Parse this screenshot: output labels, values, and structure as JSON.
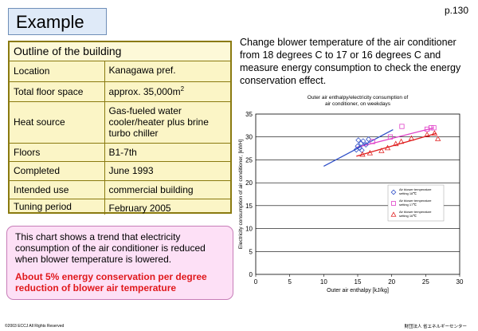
{
  "header": {
    "title": "Example",
    "page_number": "p.130"
  },
  "outline": {
    "heading": "Outline of the building",
    "rows": [
      {
        "key": "Location",
        "value": "Kanagawa pref."
      },
      {
        "key": "Total floor space",
        "value": "approx. 35,000m",
        "sup": "2"
      },
      {
        "key": "Heat source",
        "value": "Gas-fueled water cooler/heater plus brine turbo chiller"
      },
      {
        "key": "Floors",
        "value": "B1-7th"
      },
      {
        "key": "Completed",
        "value": "June 1993"
      },
      {
        "key": "Intended use",
        "value": "commercial building"
      },
      {
        "key": "Tuning period",
        "value": "February 2005"
      }
    ]
  },
  "description": "Change blower temperature of the air conditioner from 18 degrees C to 17 or 16 degrees C and measure energy consumption to check the energy conservation effect.",
  "trend_box": {
    "text": "This chart shows a trend that electricity consumption of the air conditioner is reduced when blower temperature is lowered.",
    "highlight": "About 5% energy conservation per degree reduction of blower air temperature",
    "highlight_color": "#e0181c"
  },
  "footer": {
    "left": "©2003 ECCJ All Rights Reserved",
    "right": "財団法人 省エネルギーセンター"
  },
  "chart_data": {
    "type": "scatter",
    "title_lines": [
      "Outer air enthalpy/electricity consumption of",
      "air conditioner, on weekdays"
    ],
    "xlabel": "Outer air enthalpy [kJ/kg]",
    "ylabel": "Electricity consumption of air conditioner, [kWH]",
    "xlim": [
      0,
      30
    ],
    "ylim": [
      0,
      35
    ],
    "xticks": [
      0,
      5,
      10,
      15,
      20,
      25,
      30
    ],
    "yticks": [
      0,
      5,
      10,
      15,
      20,
      25,
      30,
      35
    ],
    "grid": "horizontal",
    "legend_position": "right",
    "series": [
      {
        "name": "Air blower temperature setting 18℃",
        "marker": "diamond",
        "color": "#3050c8",
        "points": [
          [
            14.8,
            27.2
          ],
          [
            15.0,
            28.0
          ],
          [
            15.1,
            29.3
          ],
          [
            15.3,
            27.6
          ],
          [
            15.5,
            28.6
          ],
          [
            15.6,
            27.1
          ],
          [
            15.8,
            29.1
          ],
          [
            16.2,
            28.3
          ],
          [
            16.6,
            29.5
          ]
        ],
        "trend": [
          [
            10,
            23.6
          ],
          [
            20.2,
            31.6
          ]
        ]
      },
      {
        "name": "Air blower temperature setting 17℃",
        "marker": "square",
        "color": "#e040c8",
        "points": [
          [
            17.2,
            29.0
          ],
          [
            19.8,
            30.0
          ],
          [
            21.5,
            32.3
          ],
          [
            25.2,
            31.7
          ],
          [
            25.8,
            32.0
          ],
          [
            26.2,
            32.0
          ]
        ],
        "trend": [
          [
            14.8,
            27.7
          ],
          [
            26.2,
            32.0
          ]
        ]
      },
      {
        "name": "Air blower temperature setting 16℃",
        "marker": "triangle",
        "color": "#e02020",
        "points": [
          [
            15.7,
            26.2
          ],
          [
            16.8,
            26.5
          ],
          [
            18.5,
            27.0
          ],
          [
            19.4,
            27.6
          ],
          [
            20.6,
            28.5
          ],
          [
            21.4,
            29.0
          ],
          [
            22.9,
            29.7
          ],
          [
            25.2,
            30.5
          ],
          [
            26.3,
            30.8
          ],
          [
            26.8,
            29.6
          ]
        ],
        "trend": [
          [
            14.8,
            25.8
          ],
          [
            26.6,
            30.8
          ]
        ]
      }
    ]
  }
}
